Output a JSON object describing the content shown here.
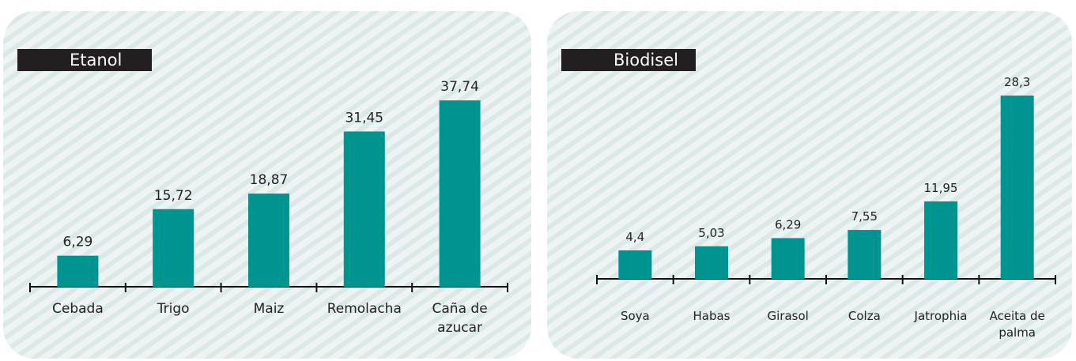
{
  "chart_data": [
    {
      "type": "bar",
      "title": "Etanol",
      "categories": [
        "Cebada",
        "Trigo",
        "Maiz",
        "Remolacha",
        "Caña de azucar"
      ],
      "values": [
        6.29,
        15.72,
        18.87,
        31.45,
        37.74
      ],
      "value_labels": [
        "6,29",
        "15,72",
        "18,87",
        "31,45",
        "37,74"
      ],
      "color": "#009490"
    },
    {
      "type": "bar",
      "title": "Biodisel",
      "categories": [
        "Soya",
        "Habas",
        "Girasol",
        "Colza",
        "Jatrophia",
        "Aceita de palma"
      ],
      "values": [
        4.4,
        5.03,
        6.29,
        7.55,
        11.95,
        28.3
      ],
      "value_labels": [
        "4,4",
        "5,03",
        "6,29",
        "7,55",
        "11,95",
        "28,3"
      ],
      "color": "#009490"
    }
  ]
}
